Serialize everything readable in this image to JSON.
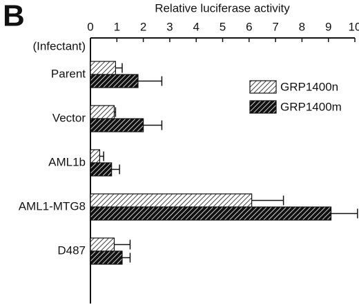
{
  "panel_label": "B",
  "chart_data": {
    "type": "bar",
    "orientation": "horizontal",
    "x_label": "Relative luciferase activity",
    "y_label": "(Infectant)",
    "categories": [
      "Parent",
      "Vector",
      "AML1b",
      "AML1-MTG8",
      "D487"
    ],
    "series": [
      {
        "name": "GRP1400n",
        "color": "#ffffff",
        "values": [
          0.95,
          0.9,
          0.35,
          6.1,
          0.9
        ],
        "errors": [
          0.25,
          0.05,
          0.15,
          1.2,
          0.6
        ]
      },
      {
        "name": "GRP1400m",
        "color": "#111111",
        "values": [
          1.8,
          2.0,
          0.8,
          9.1,
          1.2
        ],
        "errors": [
          0.9,
          0.7,
          0.3,
          1.0,
          0.3
        ]
      }
    ],
    "xlim": [
      0,
      10
    ],
    "xticks": [
      0,
      1,
      2,
      3,
      4,
      5,
      6,
      7,
      8,
      9,
      10
    ],
    "hatch": true,
    "legend": "upper right"
  }
}
